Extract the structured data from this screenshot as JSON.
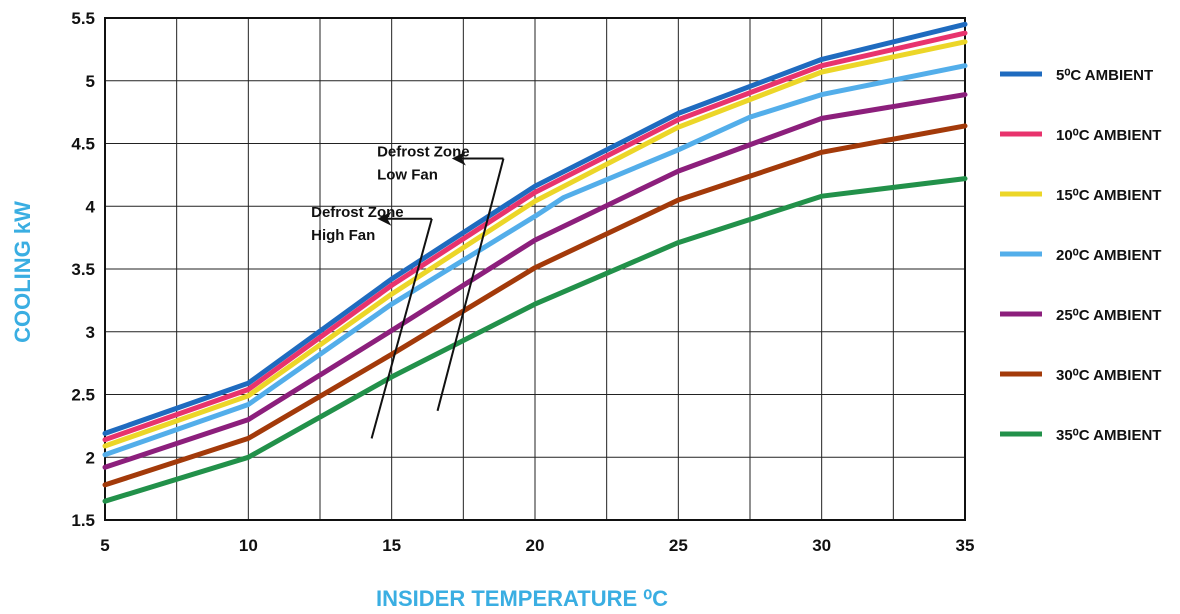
{
  "chart_data": {
    "type": "line",
    "title": "",
    "xlabel": "INSIDER TEMPERATURE ⁰C",
    "ylabel": "COOLING kW",
    "xlim": [
      5,
      35
    ],
    "ylim": [
      1.5,
      5.5
    ],
    "xticks": [
      5,
      10,
      15,
      20,
      25,
      30,
      35
    ],
    "xtick_labels": [
      "5",
      "10",
      "15",
      "20",
      "25",
      "30",
      "35"
    ],
    "yticks": [
      1.5,
      2,
      2.5,
      3,
      3.5,
      4,
      4.5,
      5,
      5.5
    ],
    "ytick_labels": [
      "1.5",
      "2",
      "2.5",
      "3",
      "3.5",
      "4",
      "4.5",
      "5",
      "5.5"
    ],
    "grid": true,
    "legend_position": "right",
    "series": [
      {
        "name": "5⁰C AMBIENT",
        "color": "#1f6bbf",
        "x": [
          5,
          10,
          15,
          20,
          25,
          30,
          35
        ],
        "y": [
          2.19,
          2.59,
          3.42,
          4.16,
          4.74,
          5.17,
          5.45
        ]
      },
      {
        "name": "10⁰C AMBIENT",
        "color": "#e8336d",
        "x": [
          5,
          10,
          15,
          20,
          25,
          30,
          35
        ],
        "y": [
          2.14,
          2.54,
          3.37,
          4.11,
          4.69,
          5.12,
          5.38
        ]
      },
      {
        "name": "15⁰C AMBIENT",
        "color": "#ecd628",
        "x": [
          5,
          10,
          15,
          20,
          25,
          30,
          35
        ],
        "y": [
          2.09,
          2.49,
          3.3,
          4.04,
          4.63,
          5.07,
          5.31
        ]
      },
      {
        "name": "20⁰C AMBIENT",
        "color": "#53aeea",
        "x": [
          5,
          10,
          15,
          20,
          21,
          25,
          27.5,
          30,
          35
        ],
        "y": [
          2.02,
          2.42,
          3.22,
          3.92,
          4.07,
          4.45,
          4.71,
          4.89,
          5.12
        ]
      },
      {
        "name": "25⁰C AMBIENT",
        "color": "#8c1f7c",
        "x": [
          5,
          10,
          15,
          20,
          25,
          30,
          35
        ],
        "y": [
          1.92,
          2.3,
          3.01,
          3.73,
          4.28,
          4.7,
          4.89
        ]
      },
      {
        "name": "30⁰C AMBIENT",
        "color": "#a33a0a",
        "x": [
          5,
          10,
          15,
          20,
          25,
          30,
          35
        ],
        "y": [
          1.78,
          2.15,
          2.82,
          3.51,
          4.05,
          4.43,
          4.64
        ]
      },
      {
        "name": "35⁰C AMBIENT",
        "color": "#22914a",
        "x": [
          5,
          10,
          15,
          20,
          25,
          30,
          35
        ],
        "y": [
          1.65,
          2.0,
          2.64,
          3.22,
          3.71,
          4.08,
          4.22
        ]
      }
    ],
    "annotations": [
      {
        "line1": "Defrost Zone",
        "line2": "Low Fan",
        "arrow_from": [
          18.9,
          4.38
        ],
        "arrow_to": [
          17.1,
          4.38
        ],
        "text_at": [
          14.7,
          4.38
        ],
        "line_to": [
          16.6,
          2.37
        ]
      },
      {
        "line1": "Defrost Zone",
        "line2": "High Fan",
        "arrow_from": [
          16.4,
          3.9
        ],
        "arrow_to": [
          14.5,
          3.9
        ],
        "text_at": [
          12.4,
          3.9
        ],
        "line_to": [
          14.3,
          2.15
        ]
      }
    ]
  }
}
